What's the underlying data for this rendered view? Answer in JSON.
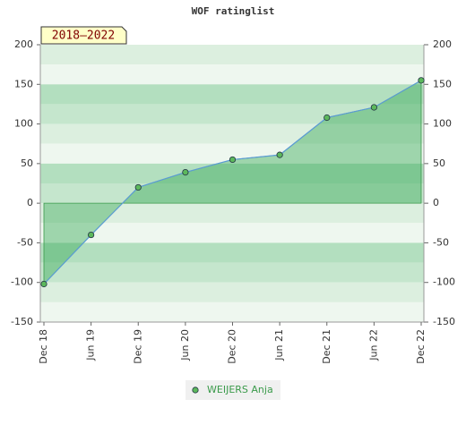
{
  "chart_data": {
    "type": "area",
    "title": "WOF ratinglist",
    "annotation": "2018–2022",
    "categories": [
      "Dec 18",
      "Jun 19",
      "Dec 19",
      "Jun 20",
      "Dec 20",
      "Jun 21",
      "Dec 21",
      "Jun 22",
      "Dec 22"
    ],
    "series": [
      {
        "name": "WEIJERS Anja",
        "color": "#5cb85c",
        "line_color": "#5b9bd5",
        "values": [
          -102,
          -40,
          20,
          39,
          55,
          61,
          108,
          121,
          155
        ]
      }
    ],
    "ylim": [
      -150,
      200
    ],
    "yticks": [
      -150,
      -100,
      -50,
      0,
      50,
      100,
      150,
      200
    ],
    "y2lim": [
      -150,
      200
    ],
    "y2ticks": [
      -150,
      -100,
      -50,
      0,
      50,
      100,
      150,
      200
    ]
  }
}
